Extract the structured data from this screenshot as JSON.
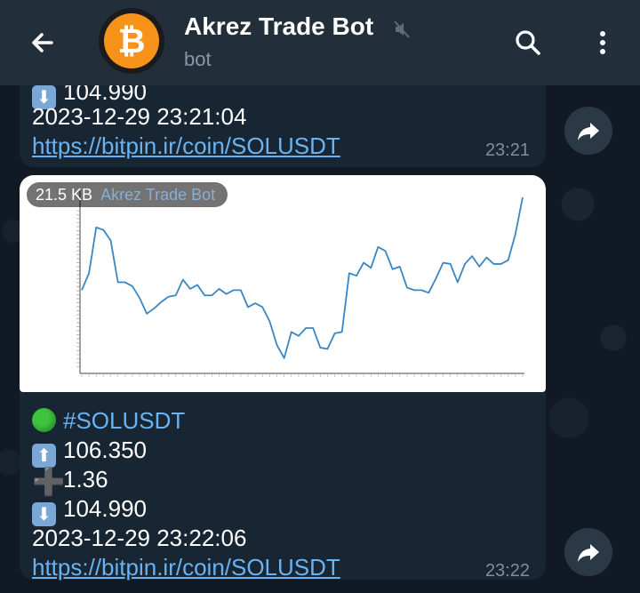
{
  "header": {
    "title": "Akrez Trade Bot",
    "subtitle": "bot",
    "avatar_glyph": "₿"
  },
  "messages": [
    {
      "down_value": "104.990",
      "datetime": "2023-12-29 23:21:04",
      "link": "https://bitpin.ir/coin/SOLUSDT",
      "time": "23:21"
    },
    {
      "file_size": "21.5 KB",
      "via": "Akrez Trade Bot",
      "hashtag": "#SOLUSDT",
      "up_value": "106.350",
      "change": "1.36",
      "down_value": "104.990",
      "datetime": "2023-12-29 23:22:06",
      "link": "https://bitpin.ir/coin/SOLUSDT",
      "time": "23:22"
    }
  ],
  "icons": {
    "back": "arrow-left-icon",
    "search": "search-icon",
    "more": "more-vertical-icon",
    "forward": "forward-arrow-icon",
    "muted": "muted-icon"
  },
  "colors": {
    "header": "#222e3a",
    "bubble": "#182533",
    "link": "#6ab3f3",
    "line": "#3a86c2"
  },
  "chart_data": {
    "type": "line",
    "ylim": [
      104.99,
      106.35
    ],
    "values": [
      105.62,
      105.75,
      106.1,
      106.08,
      106.0,
      105.68,
      105.68,
      105.65,
      105.56,
      105.44,
      105.48,
      105.53,
      105.57,
      105.58,
      105.7,
      105.63,
      105.66,
      105.58,
      105.58,
      105.63,
      105.59,
      105.62,
      105.62,
      105.49,
      105.52,
      105.49,
      105.38,
      105.2,
      105.1,
      105.3,
      105.27,
      105.33,
      105.33,
      105.18,
      105.17,
      105.29,
      105.3,
      105.75,
      105.73,
      105.83,
      105.79,
      105.95,
      105.92,
      105.78,
      105.8,
      105.64,
      105.62,
      105.62,
      105.6,
      105.71,
      105.83,
      105.82,
      105.68,
      105.82,
      105.88,
      105.8,
      105.87,
      105.82,
      105.82,
      105.85,
      106.05,
      106.33
    ]
  }
}
